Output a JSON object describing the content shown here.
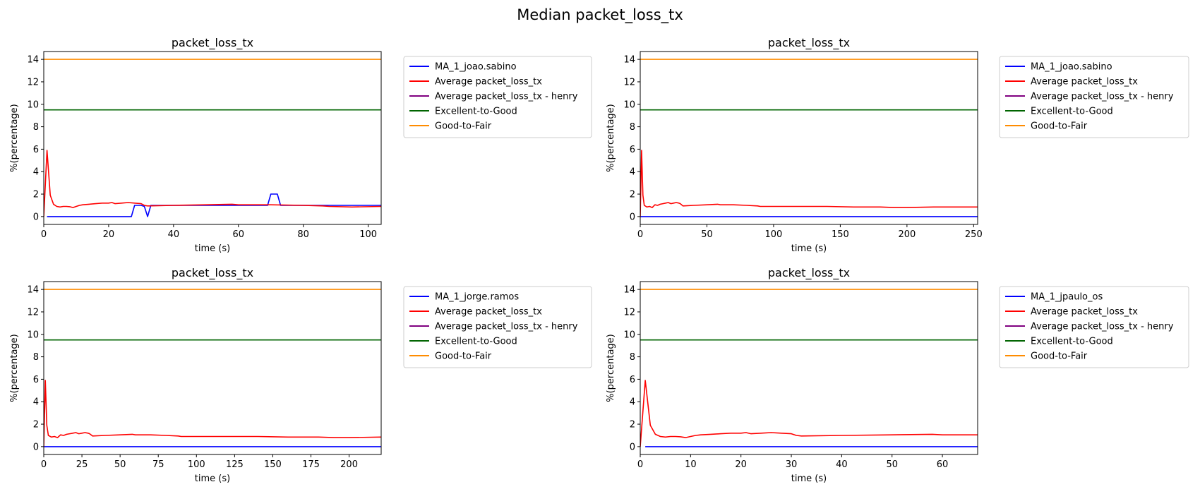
{
  "figure": {
    "suptitle": "Median packet_loss_tx",
    "colors": {
      "user": "#0000ff",
      "average": "#ff0000",
      "henry": "#800080",
      "excellent_to_good": "#006400",
      "good_to_fair": "#ff8c00",
      "axes": "#000000"
    }
  },
  "chart_data": [
    {
      "type": "line",
      "title": "packet_loss_tx",
      "xlabel": "time (s)",
      "ylabel": "%(percentage)",
      "xlim": [
        0,
        104
      ],
      "ylim": [
        -0.7,
        14.7
      ],
      "xticks": [
        0,
        20,
        40,
        60,
        80,
        100
      ],
      "xtick_labels": [
        "0",
        "20",
        "40",
        "60",
        "80",
        "100"
      ],
      "yticks": [
        0,
        2,
        4,
        6,
        8,
        10,
        12,
        14
      ],
      "ytick_labels": [
        "0",
        "2",
        "4",
        "6",
        "8",
        "10",
        "12",
        "14"
      ],
      "grid": false,
      "legend_position": "outside-right",
      "legend": [
        "MA_1_joao.sabino",
        "Average packet_loss_tx",
        "Average packet_loss_tx - henry",
        "Excellent-to-Good",
        "Good-to-Fair"
      ],
      "series": [
        {
          "name": "MA_1_joao.sabino",
          "color_key": "user",
          "x": [
            1,
            27,
            28,
            30,
            31,
            32,
            33,
            40,
            60,
            69,
            70,
            72,
            73,
            104
          ],
          "y": [
            0,
            0,
            1,
            1,
            0.9,
            0,
            1,
            1,
            1,
            1,
            2,
            2,
            1,
            1
          ]
        },
        {
          "name": "Average packet_loss_tx",
          "color_key": "average",
          "x": [
            0,
            1,
            2,
            3,
            4,
            5,
            6,
            7,
            8,
            9,
            10,
            11,
            12,
            14,
            16,
            18,
            20,
            21,
            22,
            24,
            26,
            28,
            30,
            31,
            32,
            40,
            50,
            58,
            60,
            70,
            80,
            86,
            88,
            95,
            104
          ],
          "y": [
            0,
            5.9,
            1.9,
            1.1,
            0.9,
            0.85,
            0.9,
            0.9,
            0.88,
            0.8,
            0.9,
            1.0,
            1.05,
            1.1,
            1.15,
            1.2,
            1.2,
            1.25,
            1.15,
            1.2,
            1.25,
            1.2,
            1.15,
            1.0,
            0.95,
            1.0,
            1.05,
            1.1,
            1.05,
            1.05,
            1.0,
            0.95,
            0.9,
            0.85,
            0.9
          ]
        },
        {
          "name": "Average packet_loss_tx - henry",
          "color_key": "henry",
          "x": [],
          "y": []
        },
        {
          "name": "Excellent-to-Good",
          "color_key": "excellent_to_good",
          "x": [
            0,
            104
          ],
          "y": [
            9.5,
            9.5
          ]
        },
        {
          "name": "Good-to-Fair",
          "color_key": "good_to_fair",
          "x": [
            0,
            104
          ],
          "y": [
            14,
            14
          ]
        }
      ]
    },
    {
      "type": "line",
      "title": "packet_loss_tx",
      "xlabel": "time (s)",
      "ylabel": "%(percentage)",
      "xlim": [
        0,
        253
      ],
      "ylim": [
        -0.7,
        14.7
      ],
      "xticks": [
        0,
        50,
        100,
        150,
        200,
        250
      ],
      "xtick_labels": [
        "0",
        "50",
        "100",
        "150",
        "200",
        "250"
      ],
      "yticks": [
        0,
        2,
        4,
        6,
        8,
        10,
        12,
        14
      ],
      "ytick_labels": [
        "0",
        "2",
        "4",
        "6",
        "8",
        "10",
        "12",
        "14"
      ],
      "grid": false,
      "legend_position": "outside-right",
      "legend": [
        "MA_1_joao.sabino",
        "Average packet_loss_tx",
        "Average packet_loss_tx - henry",
        "Excellent-to-Good",
        "Good-to-Fair"
      ],
      "series": [
        {
          "name": "MA_1_joao.sabino",
          "color_key": "user",
          "x": [
            0,
            253
          ],
          "y": [
            0,
            0
          ]
        },
        {
          "name": "Average packet_loss_tx",
          "color_key": "average",
          "x": [
            0,
            1,
            2,
            3,
            5,
            7,
            9,
            11,
            13,
            15,
            17,
            19,
            21,
            23,
            25,
            27,
            29,
            30,
            32,
            40,
            50,
            58,
            60,
            70,
            80,
            88,
            90,
            100,
            120,
            140,
            160,
            180,
            190,
            200,
            220,
            253
          ],
          "y": [
            0,
            5.9,
            1.9,
            1.0,
            0.85,
            0.9,
            0.8,
            1.05,
            1.0,
            1.1,
            1.15,
            1.2,
            1.25,
            1.15,
            1.2,
            1.25,
            1.2,
            1.15,
            0.95,
            1.0,
            1.05,
            1.1,
            1.05,
            1.05,
            1.0,
            0.95,
            0.9,
            0.9,
            0.9,
            0.9,
            0.85,
            0.85,
            0.8,
            0.8,
            0.85,
            0.85
          ]
        },
        {
          "name": "Average packet_loss_tx - henry",
          "color_key": "henry",
          "x": [],
          "y": []
        },
        {
          "name": "Excellent-to-Good",
          "color_key": "excellent_to_good",
          "x": [
            0,
            253
          ],
          "y": [
            9.5,
            9.5
          ]
        },
        {
          "name": "Good-to-Fair",
          "color_key": "good_to_fair",
          "x": [
            0,
            253
          ],
          "y": [
            14,
            14
          ]
        }
      ]
    },
    {
      "type": "line",
      "title": "packet_loss_tx",
      "xlabel": "time (s)",
      "ylabel": "%(percentage)",
      "xlim": [
        0,
        221
      ],
      "ylim": [
        -0.7,
        14.7
      ],
      "xticks": [
        0,
        25,
        50,
        75,
        100,
        125,
        150,
        175,
        200
      ],
      "xtick_labels": [
        "0",
        "25",
        "50",
        "75",
        "100",
        "125",
        "150",
        "175",
        "200"
      ],
      "yticks": [
        0,
        2,
        4,
        6,
        8,
        10,
        12,
        14
      ],
      "ytick_labels": [
        "0",
        "2",
        "4",
        "6",
        "8",
        "10",
        "12",
        "14"
      ],
      "grid": false,
      "legend_position": "outside-right",
      "legend": [
        "MA_1_jorge.ramos",
        "Average packet_loss_tx",
        "Average packet_loss_tx - henry",
        "Excellent-to-Good",
        "Good-to-Fair"
      ],
      "series": [
        {
          "name": "MA_1_jorge.ramos",
          "color_key": "user",
          "x": [
            0,
            221
          ],
          "y": [
            0,
            0
          ]
        },
        {
          "name": "Average packet_loss_tx",
          "color_key": "average",
          "x": [
            0,
            1,
            2,
            3,
            5,
            7,
            9,
            11,
            13,
            15,
            17,
            19,
            21,
            23,
            25,
            27,
            29,
            30,
            32,
            40,
            50,
            58,
            60,
            70,
            80,
            88,
            90,
            100,
            120,
            140,
            160,
            180,
            190,
            200,
            221
          ],
          "y": [
            0,
            5.9,
            1.9,
            1.0,
            0.85,
            0.9,
            0.8,
            1.05,
            1.0,
            1.1,
            1.15,
            1.2,
            1.25,
            1.15,
            1.2,
            1.25,
            1.2,
            1.15,
            0.95,
            1.0,
            1.05,
            1.1,
            1.05,
            1.05,
            1.0,
            0.95,
            0.9,
            0.9,
            0.9,
            0.9,
            0.85,
            0.85,
            0.8,
            0.8,
            0.85
          ]
        },
        {
          "name": "Average packet_loss_tx - henry",
          "color_key": "henry",
          "x": [],
          "y": []
        },
        {
          "name": "Excellent-to-Good",
          "color_key": "excellent_to_good",
          "x": [
            0,
            221
          ],
          "y": [
            9.5,
            9.5
          ]
        },
        {
          "name": "Good-to-Fair",
          "color_key": "good_to_fair",
          "x": [
            0,
            221
          ],
          "y": [
            14,
            14
          ]
        }
      ]
    },
    {
      "type": "line",
      "title": "packet_loss_tx",
      "xlabel": "time (s)",
      "ylabel": "%(percentage)",
      "xlim": [
        0,
        67
      ],
      "ylim": [
        -0.7,
        14.7
      ],
      "xticks": [
        0,
        10,
        20,
        30,
        40,
        50,
        60
      ],
      "xtick_labels": [
        "0",
        "10",
        "20",
        "30",
        "40",
        "50",
        "60"
      ],
      "yticks": [
        0,
        2,
        4,
        6,
        8,
        10,
        12,
        14
      ],
      "ytick_labels": [
        "0",
        "2",
        "4",
        "6",
        "8",
        "10",
        "12",
        "14"
      ],
      "grid": false,
      "legend_position": "outside-right",
      "legend": [
        "MA_1_jpaulo_os",
        "Average packet_loss_tx",
        "Average packet_loss_tx - henry",
        "Excellent-to-Good",
        "Good-to-Fair"
      ],
      "series": [
        {
          "name": "MA_1_jpaulo_os",
          "color_key": "user",
          "x": [
            1,
            67
          ],
          "y": [
            0,
            0
          ]
        },
        {
          "name": "Average packet_loss_tx",
          "color_key": "average",
          "x": [
            0,
            1,
            2,
            3,
            4,
            5,
            6,
            7,
            8,
            9,
            10,
            11,
            12,
            14,
            16,
            18,
            20,
            21,
            22,
            24,
            26,
            28,
            30,
            31,
            32,
            40,
            50,
            58,
            60,
            67
          ],
          "y": [
            0,
            5.9,
            1.9,
            1.1,
            0.9,
            0.85,
            0.9,
            0.9,
            0.88,
            0.8,
            0.9,
            1.0,
            1.05,
            1.1,
            1.15,
            1.2,
            1.2,
            1.25,
            1.15,
            1.2,
            1.25,
            1.2,
            1.15,
            1.0,
            0.95,
            1.0,
            1.05,
            1.1,
            1.05,
            1.05
          ]
        },
        {
          "name": "Average packet_loss_tx - henry",
          "color_key": "henry",
          "x": [],
          "y": []
        },
        {
          "name": "Excellent-to-Good",
          "color_key": "excellent_to_good",
          "x": [
            0,
            67
          ],
          "y": [
            9.5,
            9.5
          ]
        },
        {
          "name": "Good-to-Fair",
          "color_key": "good_to_fair",
          "x": [
            0,
            67
          ],
          "y": [
            14,
            14
          ]
        }
      ]
    }
  ]
}
